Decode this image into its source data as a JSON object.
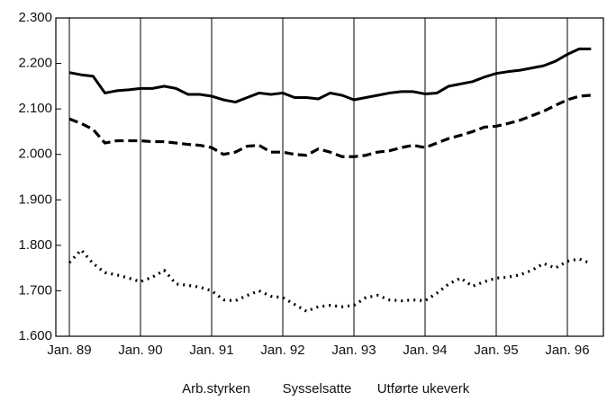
{
  "chart_data": {
    "type": "line",
    "categories": [
      "Jan. 89",
      null,
      null,
      null,
      null,
      null,
      "Jan. 90",
      null,
      null,
      null,
      null,
      null,
      "Jan. 91",
      null,
      null,
      null,
      null,
      null,
      "Jan. 92",
      null,
      null,
      null,
      null,
      null,
      "Jan. 93",
      null,
      null,
      null,
      null,
      null,
      "Jan. 94",
      null,
      null,
      null,
      null,
      null,
      "Jan. 95",
      null,
      null,
      null,
      null,
      null,
      "Jan. 96",
      null,
      null
    ],
    "series": [
      {
        "name": "Arb.styrken",
        "color": "#000000",
        "dash": "solid",
        "values": [
          2180,
          2175,
          2172,
          2135,
          2140,
          2142,
          2145,
          2145,
          2150,
          2145,
          2132,
          2132,
          2128,
          2120,
          2115,
          2125,
          2135,
          2132,
          2135,
          2125,
          2125,
          2122,
          2135,
          2130,
          2120,
          2125,
          2130,
          2135,
          2138,
          2138,
          2133,
          2135,
          2150,
          2155,
          2160,
          2170,
          2178,
          2182,
          2185,
          2190,
          2195,
          2205,
          2220,
          2232,
          2232
        ]
      },
      {
        "name": "Sysselsatte",
        "color": "#000000",
        "dash": "dashed",
        "values": [
          2078,
          2068,
          2055,
          2025,
          2030,
          2030,
          2030,
          2028,
          2028,
          2025,
          2022,
          2020,
          2015,
          2000,
          2005,
          2018,
          2020,
          2005,
          2005,
          2000,
          1998,
          2012,
          2005,
          1995,
          1995,
          1998,
          2005,
          2008,
          2015,
          2020,
          2015,
          2025,
          2035,
          2042,
          2050,
          2060,
          2062,
          2068,
          2075,
          2085,
          2095,
          2108,
          2120,
          2128,
          2130
        ]
      },
      {
        "name": "Utførte ukeverk",
        "color": "#000000",
        "dash": "dotted",
        "values": [
          1762,
          1790,
          1760,
          1740,
          1735,
          1728,
          1720,
          1730,
          1745,
          1715,
          1712,
          1708,
          1700,
          1680,
          1678,
          1690,
          1700,
          1688,
          1685,
          1670,
          1655,
          1665,
          1668,
          1665,
          1668,
          1685,
          1690,
          1680,
          1678,
          1680,
          1678,
          1695,
          1715,
          1728,
          1710,
          1720,
          1728,
          1730,
          1735,
          1745,
          1760,
          1750,
          1765,
          1770,
          1760
        ]
      }
    ],
    "ylim": [
      1600,
      2300
    ],
    "yticks": [
      {
        "value": 1600,
        "label": "1.600"
      },
      {
        "value": 1700,
        "label": "1.700"
      },
      {
        "value": 1800,
        "label": "1.800"
      },
      {
        "value": 1900,
        "label": "1.900"
      },
      {
        "value": 2000,
        "label": "2.000"
      },
      {
        "value": 2100,
        "label": "2.100"
      },
      {
        "value": 2200,
        "label": "2.200"
      },
      {
        "value": 2300,
        "label": "2.300"
      }
    ],
    "grid": "x"
  }
}
